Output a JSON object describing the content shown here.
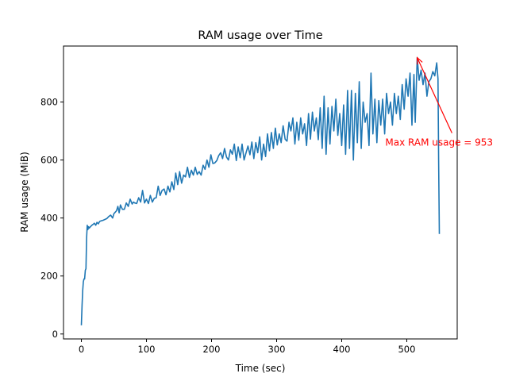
{
  "chart_data": {
    "type": "line",
    "title": "RAM usage over Time",
    "xlabel": "Time (sec)",
    "ylabel": "RAM usage (MiB)",
    "xlim": [
      -27.5,
      577.5
    ],
    "ylim": [
      -17,
      993
    ],
    "x_ticks": [
      0,
      100,
      200,
      300,
      400,
      500
    ],
    "y_ticks": [
      0,
      200,
      400,
      600,
      800
    ],
    "x_tick_labels": [
      "0",
      "100",
      "200",
      "300",
      "400",
      "500"
    ],
    "y_tick_labels": [
      "0",
      "200",
      "400",
      "600",
      "800"
    ],
    "grid": false,
    "line_color": "#1f77b4",
    "annotation": {
      "text": "Max RAM usage = 953",
      "color": "#ff0000",
      "point": [
        516,
        953
      ],
      "text_at": [
        467,
        660
      ]
    },
    "series": [
      {
        "x": [
          0,
          1,
          2,
          3,
          4,
          5,
          6,
          7,
          8,
          9,
          10,
          11,
          12,
          14,
          16,
          18,
          20,
          22,
          24,
          26,
          28,
          30,
          33,
          36,
          39,
          42,
          45,
          48,
          50,
          52,
          54,
          56,
          58,
          60,
          63,
          66,
          69,
          72,
          75,
          78,
          80,
          82,
          85,
          88,
          91,
          94,
          97,
          100,
          103,
          106,
          109,
          112,
          115,
          118,
          121,
          124,
          127,
          130,
          133,
          136,
          139,
          142,
          145,
          148,
          151,
          154,
          157,
          160,
          163,
          166,
          169,
          172,
          175,
          178,
          181,
          184,
          187,
          190,
          193,
          196,
          199,
          202,
          205,
          208,
          211,
          214,
          217,
          220,
          223,
          226,
          229,
          232,
          235,
          238,
          241,
          244,
          247,
          250,
          253,
          256,
          259,
          262,
          265,
          268,
          271,
          274,
          277,
          280,
          283,
          286,
          289,
          292,
          295,
          298,
          301,
          304,
          307,
          310,
          313,
          316,
          319,
          322,
          325,
          328,
          331,
          334,
          337,
          340,
          343,
          346,
          349,
          352,
          355,
          358,
          361,
          364,
          367,
          370,
          373,
          376,
          379,
          382,
          385,
          388,
          391,
          394,
          397,
          400,
          403,
          406,
          409,
          412,
          415,
          418,
          421,
          424,
          427,
          430,
          433,
          436,
          439,
          442,
          445,
          448,
          451,
          454,
          457,
          460,
          463,
          466,
          469,
          472,
          475,
          478,
          481,
          484,
          487,
          490,
          493,
          496,
          499,
          502,
          505,
          508,
          511,
          513,
          516,
          519,
          522,
          525,
          528,
          531,
          534,
          537,
          540,
          543,
          546,
          548,
          549,
          550
        ],
        "y": [
          30,
          100,
          150,
          180,
          190,
          190,
          220,
          225,
          330,
          375,
          360,
          370,
          365,
          370,
          375,
          378,
          382,
          375,
          385,
          380,
          388,
          390,
          392,
          395,
          398,
          405,
          410,
          400,
          415,
          420,
          425,
          440,
          418,
          445,
          430,
          430,
          452,
          440,
          465,
          448,
          455,
          452,
          450,
          470,
          455,
          495,
          452,
          465,
          450,
          478,
          455,
          468,
          470,
          510,
          478,
          495,
          500,
          480,
          510,
          490,
          525,
          498,
          555,
          515,
          560,
          520,
          548,
          542,
          575,
          540,
          565,
          548,
          575,
          550,
          560,
          548,
          582,
          568,
          600,
          575,
          618,
          588,
          590,
          598,
          615,
          625,
          605,
          640,
          610,
          600,
          635,
          620,
          655,
          598,
          645,
          608,
          655,
          600,
          625,
          648,
          618,
          662,
          605,
          660,
          625,
          680,
          600,
          655,
          612,
          690,
          632,
          695,
          640,
          710,
          652,
          690,
          660,
          718,
          672,
          665,
          730,
          700,
          745,
          655,
          730,
          668,
          745,
          690,
          725,
          650,
          760,
          672,
          765,
          700,
          745,
          670,
          780,
          640,
          820,
          620,
          780,
          655,
          785,
          700,
          810,
          685,
          760,
          650,
          790,
          620,
          840,
          640,
          840,
          600,
          830,
          660,
          870,
          640,
          800,
          730,
          760,
          650,
          900,
          690,
          810,
          660,
          805,
          720,
          810,
          690,
          830,
          760,
          800,
          720,
          830,
          760,
          820,
          740,
          860,
          775,
          880,
          820,
          900,
          720,
          895,
          730,
          953,
          875,
          910,
          860,
          900,
          820,
          870,
          880,
          905,
          890,
          935,
          880,
          600,
          345
        ]
      }
    ]
  }
}
